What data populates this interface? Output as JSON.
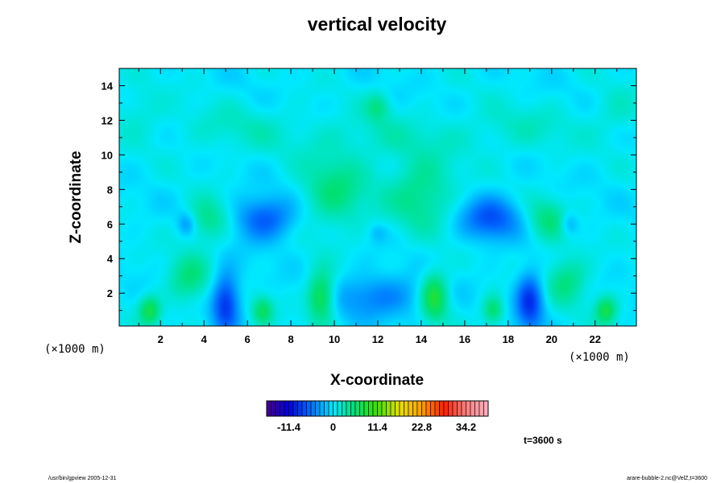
{
  "chart_data": {
    "type": "heatmap",
    "title": "vertical velocity",
    "xlabel": "X-coordinate",
    "ylabel": "Z-coordinate",
    "x_unit": "(×1000 m)",
    "y_unit": "(×1000 m)",
    "xlim": [
      0.1,
      23.9
    ],
    "ylim": [
      0.1,
      15.0
    ],
    "x_ticks": [
      2,
      4,
      6,
      8,
      10,
      12,
      14,
      16,
      18,
      20,
      22
    ],
    "y_ticks": [
      2,
      4,
      6,
      8,
      10,
      12,
      14
    ],
    "colorbar": {
      "vmin": -17.1,
      "vmax": 39.9,
      "tick_values": [
        -11.4,
        0,
        11.4,
        22.8,
        34.2
      ],
      "tick_labels": [
        "-11.4",
        "0",
        "11.4",
        "22.8",
        "34.2"
      ],
      "colormap": [
        "#4a0090",
        "#0000e0",
        "#0070ff",
        "#00e8ff",
        "#00e070",
        "#40e000",
        "#e8e000",
        "#ffa000",
        "#ff2000",
        "#ff8080",
        "#ffb0c0"
      ]
    },
    "background_value": 0,
    "features": [
      {
        "x": 5.0,
        "z": 1.5,
        "sx": 0.45,
        "sz": 1.2,
        "value": -9
      },
      {
        "x": 19.0,
        "z": 1.5,
        "sx": 0.45,
        "sz": 1.2,
        "value": -9
      },
      {
        "x": 6.8,
        "z": 6.3,
        "sx": 1.0,
        "sz": 0.9,
        "value": -7
      },
      {
        "x": 17.2,
        "z": 6.3,
        "sx": 1.0,
        "sz": 0.9,
        "value": -7
      },
      {
        "x": 3.2,
        "z": 6.0,
        "sx": 0.3,
        "sz": 0.5,
        "value": -4
      },
      {
        "x": 20.8,
        "z": 6.0,
        "sx": 0.3,
        "sz": 0.5,
        "value": -4
      },
      {
        "x": 12.0,
        "z": 1.8,
        "sx": 1.6,
        "sz": 0.9,
        "value": -5
      },
      {
        "x": 9.4,
        "z": 1.8,
        "sx": 0.45,
        "sz": 1.0,
        "value": 9
      },
      {
        "x": 14.6,
        "z": 1.8,
        "sx": 0.45,
        "sz": 1.0,
        "value": 9
      },
      {
        "x": 1.5,
        "z": 1.0,
        "sx": 0.35,
        "sz": 0.6,
        "value": 7
      },
      {
        "x": 22.5,
        "z": 1.0,
        "sx": 0.35,
        "sz": 0.6,
        "value": 7
      },
      {
        "x": 6.7,
        "z": 1.0,
        "sx": 0.35,
        "sz": 0.6,
        "value": 6
      },
      {
        "x": 17.3,
        "z": 1.0,
        "sx": 0.35,
        "sz": 0.6,
        "value": 6
      },
      {
        "x": 3.3,
        "z": 2.8,
        "sx": 0.7,
        "sz": 1.0,
        "value": 5
      },
      {
        "x": 20.7,
        "z": 2.8,
        "sx": 0.7,
        "sz": 1.0,
        "value": 5
      },
      {
        "x": 4.2,
        "z": 6.2,
        "sx": 0.7,
        "sz": 0.9,
        "value": 5
      },
      {
        "x": 19.8,
        "z": 6.2,
        "sx": 0.7,
        "sz": 0.9,
        "value": 5
      },
      {
        "x": 10.0,
        "z": 7.8,
        "sx": 1.1,
        "sz": 1.5,
        "value": 5
      },
      {
        "x": 14.0,
        "z": 7.8,
        "sx": 1.1,
        "sz": 1.5,
        "value": 5
      },
      {
        "x": 12.0,
        "z": 12.8,
        "sx": 0.4,
        "sz": 0.6,
        "value": 4
      },
      {
        "x": 12.0,
        "z": 11.0,
        "sx": 2.5,
        "sz": 1.0,
        "value": 2
      },
      {
        "x": 5.5,
        "z": 11.5,
        "sx": 2.0,
        "sz": 1.0,
        "value": 2
      },
      {
        "x": 18.5,
        "z": 11.5,
        "sx": 2.0,
        "sz": 1.0,
        "value": 2
      },
      {
        "x": 12.0,
        "z": 5.5,
        "sx": 0.3,
        "sz": 0.4,
        "value": -2
      },
      {
        "x": 1.0,
        "z": 12.5,
        "sx": 0.8,
        "sz": 1.0,
        "value": 2
      },
      {
        "x": 23.0,
        "z": 12.5,
        "sx": 0.8,
        "sz": 1.0,
        "value": 2
      }
    ],
    "time_label": "t=3600 s"
  },
  "footer": {
    "left": "/usr/bin/gpview 2005-12-31",
    "right": "arare-bubble-2.nc@VelZ,t=3600"
  }
}
